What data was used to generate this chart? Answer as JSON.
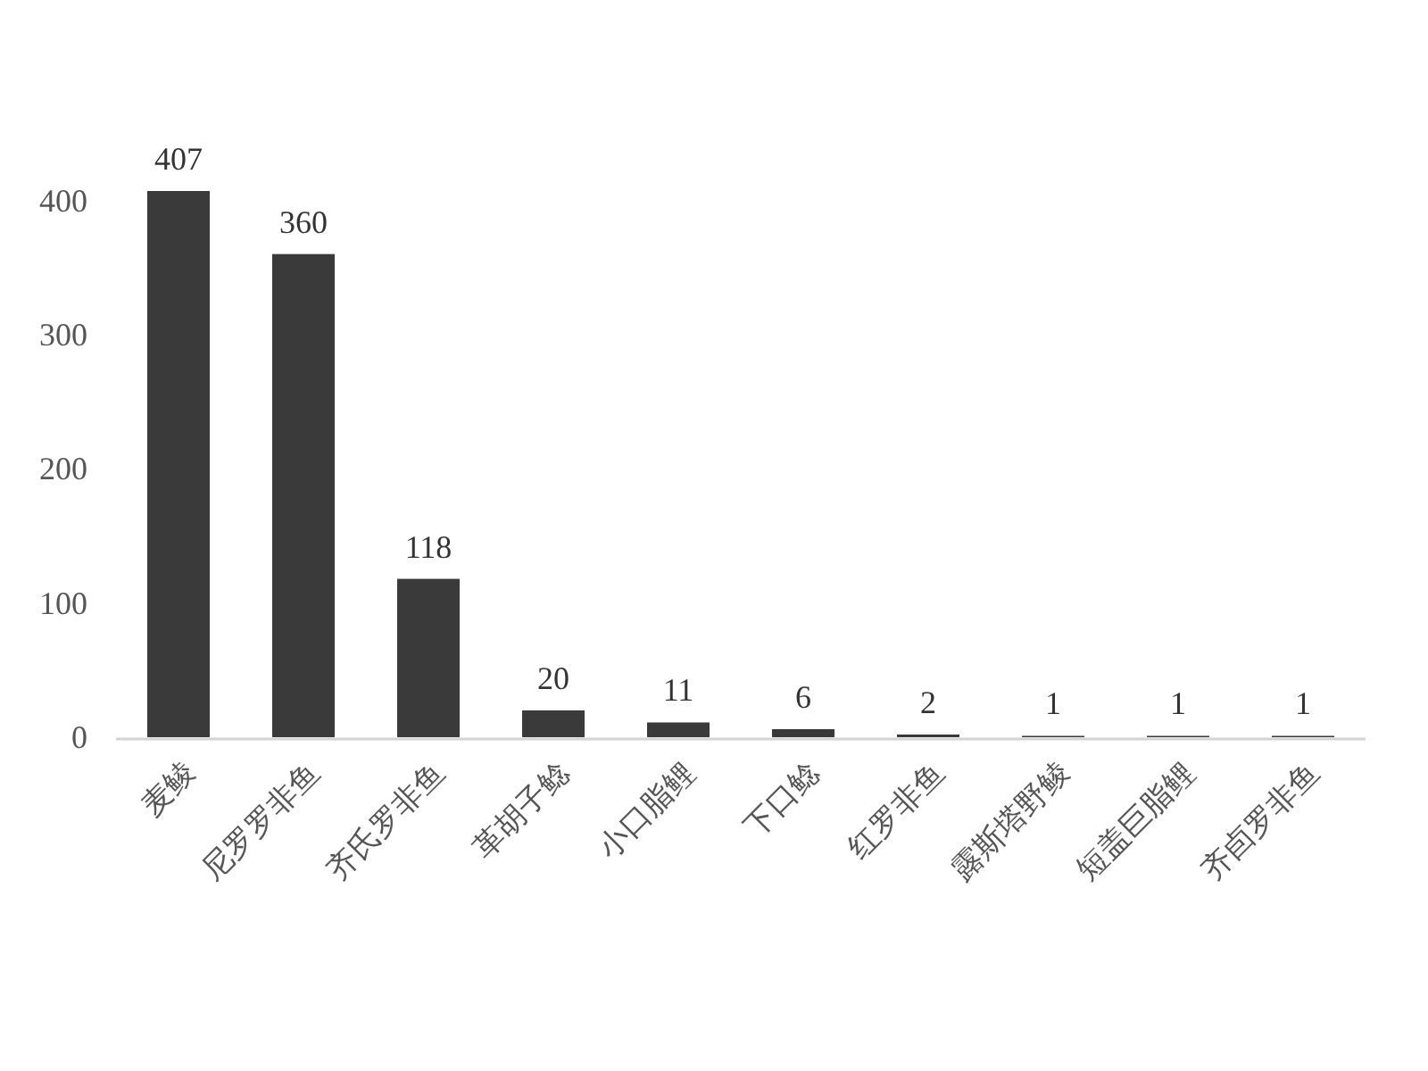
{
  "chart_data": {
    "type": "bar",
    "categories": [
      "麦鲮",
      "尼罗罗非鱼",
      "齐氏罗非鱼",
      "革胡子鲶",
      "小口脂鲤",
      "下口鲶",
      "红罗非鱼",
      "露斯塔野鲮",
      "短盖巨脂鲤",
      "齐卣罗非鱼"
    ],
    "values": [
      407,
      360,
      118,
      20,
      11,
      6,
      2,
      1,
      1,
      1
    ],
    "color": "#3a3a3a",
    "ylim": [
      0,
      407
    ],
    "yticks": [
      0,
      100,
      200,
      300,
      400
    ],
    "data_labels": true
  }
}
